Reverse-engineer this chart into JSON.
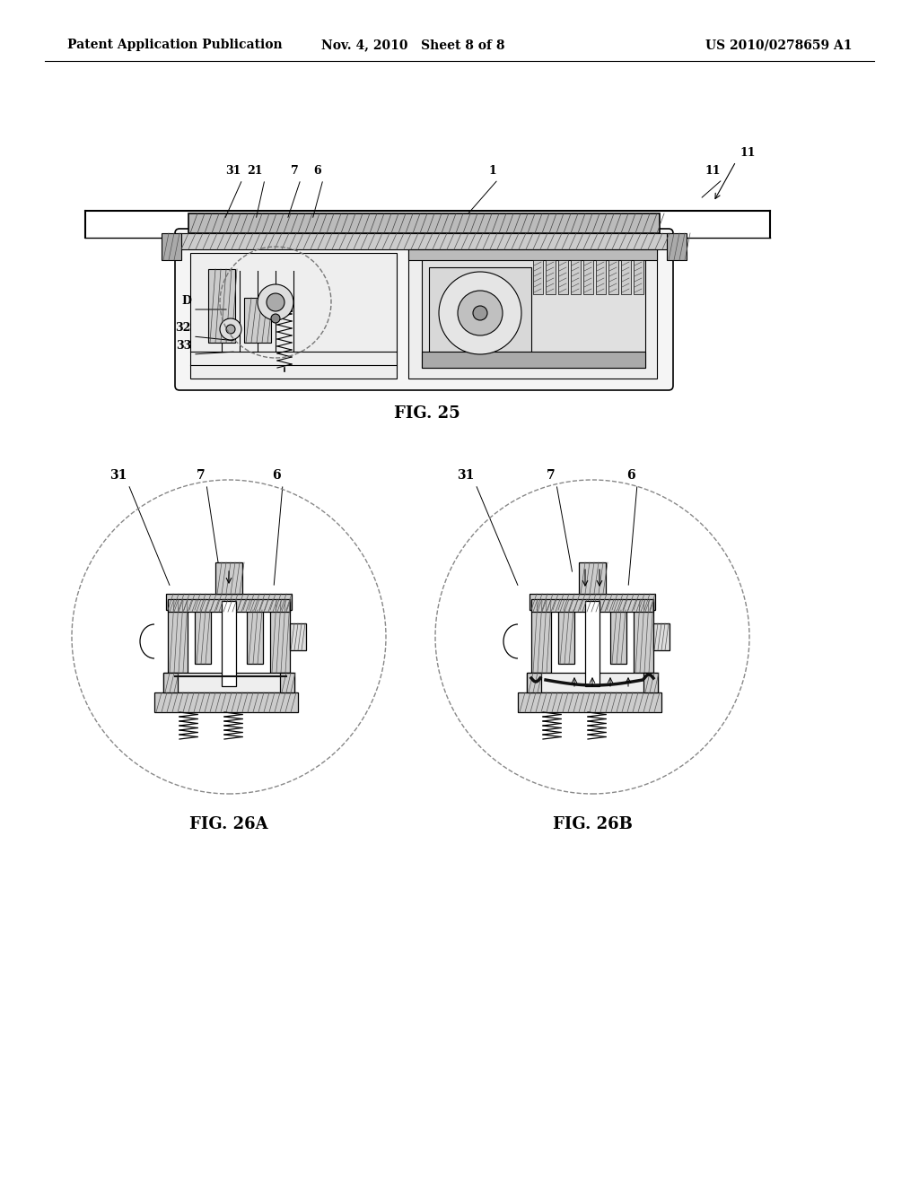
{
  "background_color": "#ffffff",
  "header_left": "Patent Application Publication",
  "header_mid": "Nov. 4, 2010   Sheet 8 of 8",
  "header_right": "US 2010/0278659 A1",
  "fig25_label": "FIG. 25",
  "fig26a_label": "FIG. 26A",
  "fig26b_label": "FIG. 26B",
  "line_color": "#000000",
  "gray_dark": "#444444",
  "gray_mid": "#888888",
  "gray_light": "#cccccc",
  "hatch_color": "#555555"
}
